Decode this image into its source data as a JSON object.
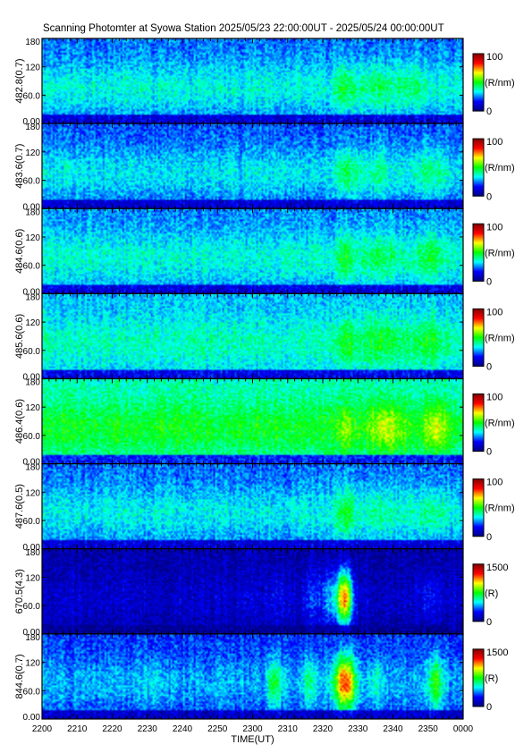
{
  "title": "Scanning Photomter at Syowa Station 2025/05/23 22:00:00UT - 2025/05/24 00:00:00UT",
  "colors": {
    "background": "#ffffff",
    "axis": "#000000",
    "colormap": [
      "#000080",
      "#0000ff",
      "#00ffff",
      "#00ff00",
      "#ffff00",
      "#ff0000",
      "#800000"
    ]
  },
  "chart_data": {
    "type": "heatmap",
    "title": "Scanning Photomter at Syowa Station 2025/05/23 22:00:00UT - 2025/05/24 00:00:00UT",
    "xlabel": "TIME(UT)",
    "x_ticks": [
      "2200",
      "2210",
      "2220",
      "2230",
      "2240",
      "2250",
      "2300",
      "2310",
      "2320",
      "2330",
      "2340",
      "2350",
      "0000"
    ],
    "x_range_minutes": [
      0,
      120
    ],
    "y_range": [
      0,
      180
    ],
    "y_ticks": [
      "0.00",
      "60.0",
      "120",
      "180"
    ],
    "panels": [
      {
        "label": "482.8(0.7)",
        "unit": "(R/nm)",
        "cmin": "0",
        "cmax": "100",
        "base": 0.22,
        "band": 0.35,
        "cols": [
          [
            0.6,
            0.3
          ],
          [
            1.0,
            0.2
          ],
          [
            3.0,
            0.2
          ],
          [
            5.0,
            0.25
          ],
          [
            10.0,
            0.2
          ]
        ],
        "bumps": [
          [
            86.0,
            0.12,
            2.5
          ],
          [
            94.0,
            0.08,
            5.0
          ],
          [
            104.0,
            0.07,
            6.0
          ]
        ]
      },
      {
        "label": "483.6(0.7)",
        "unit": "(R/nm)",
        "cmin": "0",
        "cmax": "100",
        "base": 0.2,
        "band": 0.33,
        "cols": [
          [
            0.6,
            0.3
          ],
          [
            1.0,
            0.2
          ],
          [
            3.0,
            0.2
          ],
          [
            5.0,
            0.25
          ],
          [
            10.0,
            0.2
          ]
        ],
        "bumps": [
          [
            86.0,
            0.12,
            2.5
          ],
          [
            94.0,
            0.07,
            5.0
          ],
          [
            110.0,
            0.08,
            5.0
          ]
        ]
      },
      {
        "label": "484.6(0.6)",
        "unit": "(R/nm)",
        "cmin": "0",
        "cmax": "100",
        "base": 0.24,
        "band": 0.36,
        "cols": [
          [
            0.6,
            0.3
          ],
          [
            1.0,
            0.2
          ],
          [
            3.0,
            0.2
          ],
          [
            5.0,
            0.25
          ],
          [
            10.0,
            0.2
          ]
        ],
        "bumps": [
          [
            86.0,
            0.12,
            2.5
          ],
          [
            96.0,
            0.08,
            6.0
          ],
          [
            110.0,
            0.09,
            5.0
          ]
        ]
      },
      {
        "label": "485.6(0.6)",
        "unit": "(R/nm)",
        "cmin": "0",
        "cmax": "100",
        "base": 0.28,
        "band": 0.38,
        "cols": [
          [
            0.6,
            0.3
          ],
          [
            1.0,
            0.2
          ],
          [
            3.0,
            0.2
          ],
          [
            5.0,
            0.25
          ],
          [
            10.0,
            0.2
          ]
        ],
        "bumps": [
          [
            86.0,
            0.12,
            2.5
          ],
          [
            96.0,
            0.1,
            6.0
          ],
          [
            110.0,
            0.1,
            5.0
          ]
        ]
      },
      {
        "label": "486.4(0.6)",
        "unit": "(R/nm)",
        "cmin": "0",
        "cmax": "100",
        "base": 0.36,
        "band": 0.48,
        "cols": [
          [
            0.6,
            0.3
          ],
          [
            1.0,
            0.2
          ],
          [
            3.0,
            0.2
          ],
          [
            5.0,
            0.25
          ],
          [
            10.0,
            0.2
          ]
        ],
        "bumps": [
          [
            86.0,
            0.1,
            2.5
          ],
          [
            98.0,
            0.16,
            5.0
          ],
          [
            112.0,
            0.16,
            3.5
          ]
        ]
      },
      {
        "label": "487.6(0.5)",
        "unit": "(R/nm)",
        "cmin": "0",
        "cmax": "100",
        "base": 0.22,
        "band": 0.34,
        "cols": [
          [
            0.6,
            0.3
          ],
          [
            1.0,
            0.2
          ],
          [
            3.0,
            0.2
          ],
          [
            5.0,
            0.25
          ],
          [
            10.0,
            0.2
          ]
        ],
        "bumps": [
          [
            86.0,
            0.14,
            2.5
          ],
          [
            96.0,
            0.07,
            5.0
          ],
          [
            110.0,
            0.08,
            5.0
          ]
        ]
      },
      {
        "label": "670.5(4.3)",
        "unit": "(R)",
        "cmin": "0",
        "cmax": "1500",
        "base": 0.05,
        "band": 0.1,
        "cols": [
          [
            0.6,
            0.3
          ],
          [
            1.0,
            0.2
          ],
          [
            3.0,
            0.2
          ],
          [
            5.0,
            0.25
          ],
          [
            10.0,
            0.2
          ]
        ],
        "bumps": [
          [
            86.0,
            0.62,
            2.2
          ],
          [
            82.0,
            0.18,
            3.5
          ],
          [
            66.0,
            0.05,
            3.0
          ],
          [
            76.0,
            0.08,
            2.0
          ],
          [
            110.0,
            0.06,
            3.0
          ]
        ]
      },
      {
        "label": "844.6(0.7)",
        "unit": "(R)",
        "cmin": "0",
        "cmax": "1500",
        "base": 0.18,
        "band": 0.28,
        "cols": [
          [
            0.6,
            0.3
          ],
          [
            1.0,
            0.2
          ],
          [
            3.0,
            0.2
          ],
          [
            5.0,
            0.25
          ],
          [
            10.0,
            0.2
          ]
        ],
        "bumps": [
          [
            86.0,
            0.55,
            3.0
          ],
          [
            66.0,
            0.2,
            2.0
          ],
          [
            76.0,
            0.15,
            2.0
          ],
          [
            95.0,
            0.1,
            2.0
          ],
          [
            112.0,
            0.25,
            2.0
          ],
          [
            32.0,
            0.06,
            3.0
          ]
        ]
      }
    ]
  }
}
